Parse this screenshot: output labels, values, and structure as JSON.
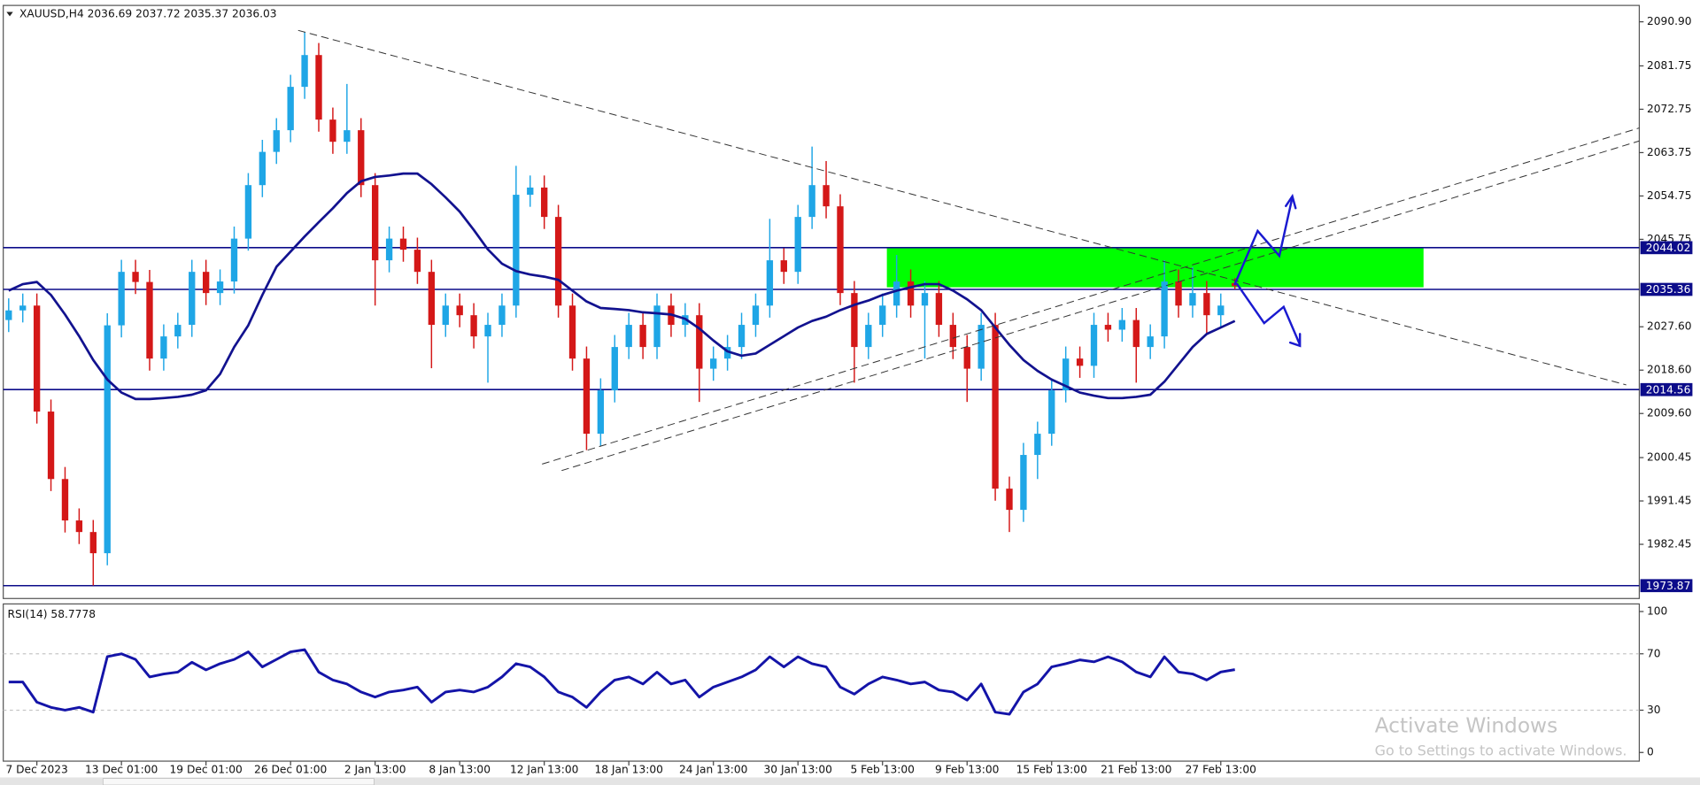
{
  "header": "XAUUSD,H4  2036.69 2037.72 2035.37 2036.03",
  "watermark": {
    "title": "Activate Windows",
    "subtitle": "Go to Settings to activate Windows."
  },
  "chart_data": [
    {
      "type": "candlestick",
      "categories": [
        null,
        null,
        "7 Dec 2023",
        null,
        null,
        null,
        null,
        null,
        "13 Dec 01:00",
        null,
        null,
        null,
        null,
        null,
        "19 Dec 01:00",
        null,
        null,
        null,
        null,
        null,
        "26 Dec 01:00",
        null,
        null,
        null,
        null,
        null,
        "2 Jan 13:00",
        null,
        null,
        null,
        null,
        null,
        "8 Jan 13:00",
        null,
        null,
        null,
        null,
        null,
        "12 Jan 13:00",
        null,
        null,
        null,
        null,
        null,
        "18 Jan 13:00",
        null,
        null,
        null,
        null,
        null,
        "24 Jan 13:00",
        null,
        null,
        null,
        null,
        null,
        "30 Jan 13:00",
        null,
        null,
        null,
        null,
        null,
        "5 Feb 13:00",
        null,
        null,
        null,
        null,
        null,
        "9 Feb 13:00",
        null,
        null,
        null,
        null,
        null,
        "15 Feb 13:00",
        null,
        null,
        null,
        null,
        null,
        "21 Feb 13:00",
        null,
        null,
        null,
        null,
        null,
        "27 Feb 13:00",
        null
      ],
      "open": [
        2029,
        2031,
        2032,
        2010,
        1996,
        1987.4,
        1985,
        1980.6,
        2027.9,
        2039,
        2036.9,
        2021,
        2025.6,
        2028,
        2039,
        2034.6,
        2037,
        2045.9,
        2057,
        2063.9,
        2068.4,
        2077.4,
        2084,
        2070.6,
        2066,
        2068.4,
        2057,
        2041.4,
        2045.9,
        2043.6,
        2039,
        2028,
        2032,
        2030,
        2025.6,
        2028,
        2032,
        2055,
        2056.5,
        2050.4,
        2032,
        2021,
        2005.4,
        2014.4,
        2023.4,
        2028,
        2023.4,
        2032,
        2028,
        2030,
        2018.9,
        2021,
        2023.4,
        2028,
        2032,
        2041.4,
        2039,
        2050.4,
        2057,
        2052.6,
        2034.6,
        2023.4,
        2028,
        2032,
        2037,
        2032,
        2034.6,
        2028,
        2023.4,
        2018.9,
        2028,
        1994,
        1989.6,
        2001,
        2005.4,
        2014.4,
        2021,
        2019.5,
        2028,
        2027,
        2029,
        2023.4,
        2025.6,
        2037,
        2032,
        2034.6,
        2030,
        2036.69
      ],
      "high": [
        2033.5,
        2034.5,
        2034.5,
        2012.5,
        1998.5,
        1989.9,
        1987.5,
        2030.4,
        2041.5,
        2041.5,
        2039.4,
        2028.1,
        2030.5,
        2041.5,
        2041.5,
        2039.5,
        2048.4,
        2059.5,
        2066.4,
        2070.9,
        2079.9,
        2088.7,
        2086.5,
        2073.1,
        2078,
        2070.9,
        2059.5,
        2048.4,
        2048.4,
        2046.1,
        2041.5,
        2034.5,
        2034.5,
        2032.5,
        2030.5,
        2034.5,
        2061,
        2059,
        2059,
        2052.9,
        2034.5,
        2023.5,
        2016.9,
        2025.9,
        2030.5,
        2030.5,
        2034.5,
        2034.5,
        2032.5,
        2032.5,
        2023.5,
        2025.9,
        2030.5,
        2034.5,
        2050,
        2043.9,
        2052.9,
        2065,
        2062,
        2055.1,
        2037.1,
        2030.5,
        2034.5,
        2042.5,
        2039.5,
        2037.1,
        2037.1,
        2030.5,
        2025.9,
        2030.5,
        2030.5,
        1996.5,
        2003.5,
        2007.9,
        2016.9,
        2023.5,
        2023.5,
        2030.5,
        2030.5,
        2031.5,
        2031.5,
        2028.1,
        2041.4,
        2039.5,
        2040,
        2037.1,
        2034.5,
        2037.72
      ],
      "low": [
        2026.5,
        2028.5,
        2007.5,
        1993.5,
        1984.9,
        1982.5,
        1973.9,
        1978.1,
        2025.4,
        2034.4,
        2018.5,
        2018.5,
        2023.1,
        2025.5,
        2032.1,
        2032.1,
        2034.5,
        2043.4,
        2054.5,
        2061.4,
        2065.9,
        2074.9,
        2068.1,
        2063.5,
        2063.5,
        2054.5,
        2032,
        2038.9,
        2041.1,
        2036.5,
        2019,
        2025.5,
        2027.5,
        2023.1,
        2016,
        2025.5,
        2029.5,
        2052.5,
        2047.9,
        2029.5,
        2018.5,
        2002,
        2002.9,
        2011.9,
        2020.9,
        2020.9,
        2020.9,
        2025.5,
        2025.5,
        2012,
        2016.4,
        2018.5,
        2020.9,
        2025.5,
        2029.5,
        2036.5,
        2036.5,
        2047.9,
        2050.1,
        2032.1,
        2016,
        2020.9,
        2025.5,
        2029.5,
        2029.5,
        2021,
        2025.5,
        2020.9,
        2012,
        2016.4,
        1991.5,
        1985,
        1987.1,
        1996,
        2002.9,
        2011.9,
        2017,
        2017,
        2024.5,
        2024.5,
        2016,
        2020.9,
        2023.1,
        2029.5,
        2029.5,
        2026,
        2027.5,
        2035.37
      ],
      "close": [
        2031,
        2032,
        2010,
        1996,
        1987.4,
        1985,
        1980.6,
        2027.9,
        2039,
        2036.9,
        2021,
        2025.6,
        2028,
        2039,
        2034.6,
        2037,
        2045.9,
        2057,
        2063.9,
        2068.4,
        2077.4,
        2084,
        2070.6,
        2066,
        2068.4,
        2057,
        2041.4,
        2045.9,
        2043.6,
        2039,
        2028,
        2032,
        2030,
        2025.6,
        2028,
        2032,
        2055,
        2056.5,
        2050.4,
        2032,
        2021,
        2005.4,
        2014.4,
        2023.4,
        2028,
        2023.4,
        2032,
        2028,
        2030,
        2018.9,
        2021,
        2023.4,
        2028,
        2032,
        2041.4,
        2039,
        2050.4,
        2057,
        2052.6,
        2034.6,
        2023.4,
        2028,
        2032,
        2037,
        2032,
        2034.6,
        2028,
        2023.4,
        2018.9,
        2028,
        1994,
        1989.6,
        2001,
        2005.4,
        2014.4,
        2021,
        2019.5,
        2028,
        2027,
        2029,
        2023.4,
        2025.6,
        2037,
        2032,
        2034.6,
        2030,
        2032,
        2036.03
      ],
      "up_color": "#1fa6e6",
      "down_color": "#d41818",
      "series": [
        {
          "color": "#12128f",
          "values": [
            2035.1,
            2036.45,
            2036.9,
            2034.2,
            2030.15,
            2025.65,
            2020.7,
            2016.65,
            2013.95,
            2012.6,
            2012.6,
            2012.8,
            2013.05,
            2013.5,
            2014.4,
            2017.8,
            2023.4,
            2027.9,
            2034.2,
            2040.05,
            2043.2,
            2046.35,
            2049.3,
            2052.2,
            2055.35,
            2057.8,
            2058.7,
            2059,
            2059.4,
            2059.4,
            2057.2,
            2054.45,
            2051.5,
            2047.7,
            2043.65,
            2040.7,
            2039.15,
            2038.45,
            2038,
            2037.35,
            2035.1,
            2032.85,
            2031.5,
            2031.3,
            2031.05,
            2030.6,
            2030.4,
            2030.15,
            2029.25,
            2027.25,
            2024.75,
            2022.5,
            2021.6,
            2022.05,
            2023.85,
            2025.65,
            2027.45,
            2028.8,
            2029.7,
            2031.05,
            2032.15,
            2033.05,
            2034.2,
            2035.1,
            2035.8,
            2036.45,
            2036.45,
            2035.1,
            2033.3,
            2031.05,
            2027.45,
            2023.85,
            2020.7,
            2018.45,
            2016.65,
            2015.3,
            2013.95,
            2013.3,
            2012.8,
            2012.8,
            2013.05,
            2013.5,
            2016.2,
            2019.8,
            2023.4,
            2026.1,
            2027.45,
            2028.8
          ]
        }
      ],
      "levels": [
        2044.02,
        2035.36,
        2014.56,
        1973.87
      ],
      "level_color": "#0c0c8a",
      "zone": {
        "high": 2044.02,
        "low": 2035.8,
        "color": "#00ff00"
      },
      "ylim": [
        1971.2,
        2094.3
      ],
      "yticks": [
        {
          "value": 2090.9,
          "label": "2090.90"
        },
        2081.75,
        2072.75,
        2063.75,
        2054.75,
        2045.75,
        {
          "value": 2027.6,
          "label": "2027.60"
        },
        {
          "value": 2018.6,
          "label": "2018.60"
        },
        {
          "value": 2009.6,
          "label": "2009.60"
        },
        2000.45,
        1991.45,
        1982.45
      ]
    },
    {
      "type": "line",
      "title": "RSI(14) 58.7778",
      "color": "#1414a8",
      "values": [
        50,
        50,
        35.7,
        32,
        30,
        32,
        28.6,
        68,
        70,
        66,
        53.6,
        55.7,
        57,
        64,
        58.6,
        63,
        66,
        71.4,
        60.7,
        66,
        71.4,
        72.9,
        57,
        51.4,
        48.6,
        42.9,
        39.3,
        42.9,
        44.3,
        46.4,
        35.7,
        42.9,
        44.3,
        42.9,
        46.4,
        53.6,
        63,
        60.7,
        53.6,
        42.9,
        39.3,
        32,
        42.9,
        51.4,
        53.6,
        48.6,
        57,
        48.6,
        51.4,
        39.3,
        46.4,
        50,
        53.6,
        58.6,
        67.9,
        60.7,
        67.9,
        63,
        60.7,
        46.4,
        41.4,
        48.6,
        53.6,
        51.4,
        48.6,
        50,
        44.3,
        42.9,
        37.1,
        48.6,
        28.6,
        27.1,
        42.9,
        48.6,
        60.7,
        63,
        65.7,
        64.3,
        67.9,
        64.3,
        57.1,
        53.6,
        67.9,
        57.1,
        55.7,
        51.4,
        57.1,
        58.7778
      ],
      "levels": [
        70,
        30
      ],
      "ylim": [
        0,
        100
      ],
      "yticks": [
        100,
        70,
        30,
        0
      ]
    }
  ]
}
